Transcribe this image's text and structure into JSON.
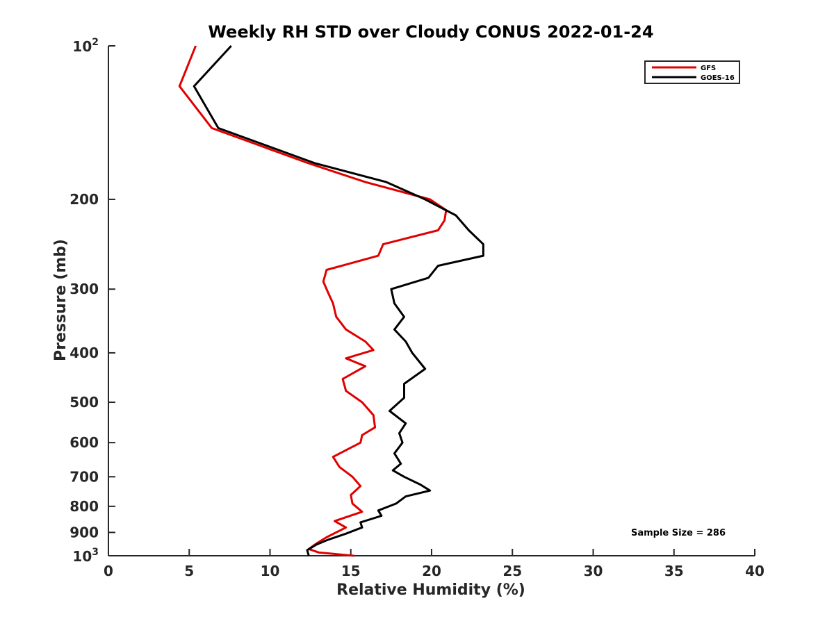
{
  "chart_data": {
    "type": "line",
    "title": "Weekly RH STD over Cloudy CONUS 2022-01-24",
    "xlabel": "Relative Humidity (%)",
    "ylabel": "Pressure (mb)",
    "xlim": [
      0,
      40
    ],
    "ylim": [
      100,
      1000
    ],
    "y_scale": "log",
    "y_reversed": true,
    "grid": false,
    "legend_position": "top-right",
    "x_ticks": [
      0,
      5,
      10,
      15,
      20,
      25,
      30,
      35,
      40
    ],
    "y_ticks": [
      {
        "value": 100,
        "base": "10",
        "exp": "2"
      },
      {
        "value": 200,
        "label": "200"
      },
      {
        "value": 300,
        "label": "300"
      },
      {
        "value": 400,
        "label": "400"
      },
      {
        "value": 500,
        "label": "500"
      },
      {
        "value": 600,
        "label": "600"
      },
      {
        "value": 700,
        "label": "700"
      },
      {
        "value": 800,
        "label": "800"
      },
      {
        "value": 900,
        "label": "900"
      },
      {
        "value": 1000,
        "base": "10",
        "exp": "3"
      }
    ],
    "annotation": "Sample Size = 286",
    "series": [
      {
        "name": "GFS",
        "color": "#e00000",
        "x": [
          5.4,
          4.4,
          6.4,
          12.4,
          15.9,
          19.9,
          20.9,
          20.8,
          20.4,
          17.0,
          16.7,
          13.5,
          13.3,
          13.6,
          13.9,
          14.1,
          14.7,
          15.9,
          16.4,
          14.7,
          15.9,
          14.5,
          14.7,
          15.7,
          16.4,
          16.5,
          15.7,
          15.6,
          13.9,
          14.3,
          15.1,
          15.6,
          15.0,
          15.1,
          15.7,
          14.0,
          14.7,
          13.5,
          12.9,
          12.4,
          13.0,
          15.2
        ],
        "y": [
          100,
          120,
          145,
          170,
          185,
          200,
          210,
          220,
          230,
          245,
          258,
          275,
          290,
          305,
          320,
          340,
          360,
          380,
          395,
          410,
          425,
          450,
          475,
          500,
          530,
          560,
          580,
          600,
          640,
          670,
          700,
          730,
          760,
          790,
          820,
          855,
          880,
          920,
          945,
          970,
          985,
          1000
        ]
      },
      {
        "name": "GOES-16",
        "color": "#000000",
        "x": [
          7.6,
          5.3,
          6.8,
          12.8,
          17.2,
          19.6,
          21.5,
          22.3,
          23.2,
          23.2,
          20.4,
          19.8,
          17.5,
          17.7,
          18.3,
          17.7,
          18.4,
          18.8,
          19.6,
          18.3,
          18.3,
          17.4,
          18.4,
          18.0,
          18.2,
          17.7,
          18.1,
          17.6,
          18.3,
          19.3,
          19.9,
          18.4,
          17.8,
          16.7,
          16.9,
          15.6,
          15.7,
          14.7,
          13.6,
          12.9,
          12.3,
          12.4
        ],
        "y": [
          100,
          120,
          145,
          170,
          185,
          200,
          215,
          230,
          245,
          258,
          270,
          285,
          300,
          320,
          340,
          360,
          380,
          400,
          430,
          460,
          490,
          520,
          550,
          575,
          600,
          630,
          660,
          680,
          700,
          725,
          745,
          765,
          790,
          815,
          835,
          860,
          880,
          905,
          930,
          950,
          975,
          1000
        ]
      }
    ]
  }
}
